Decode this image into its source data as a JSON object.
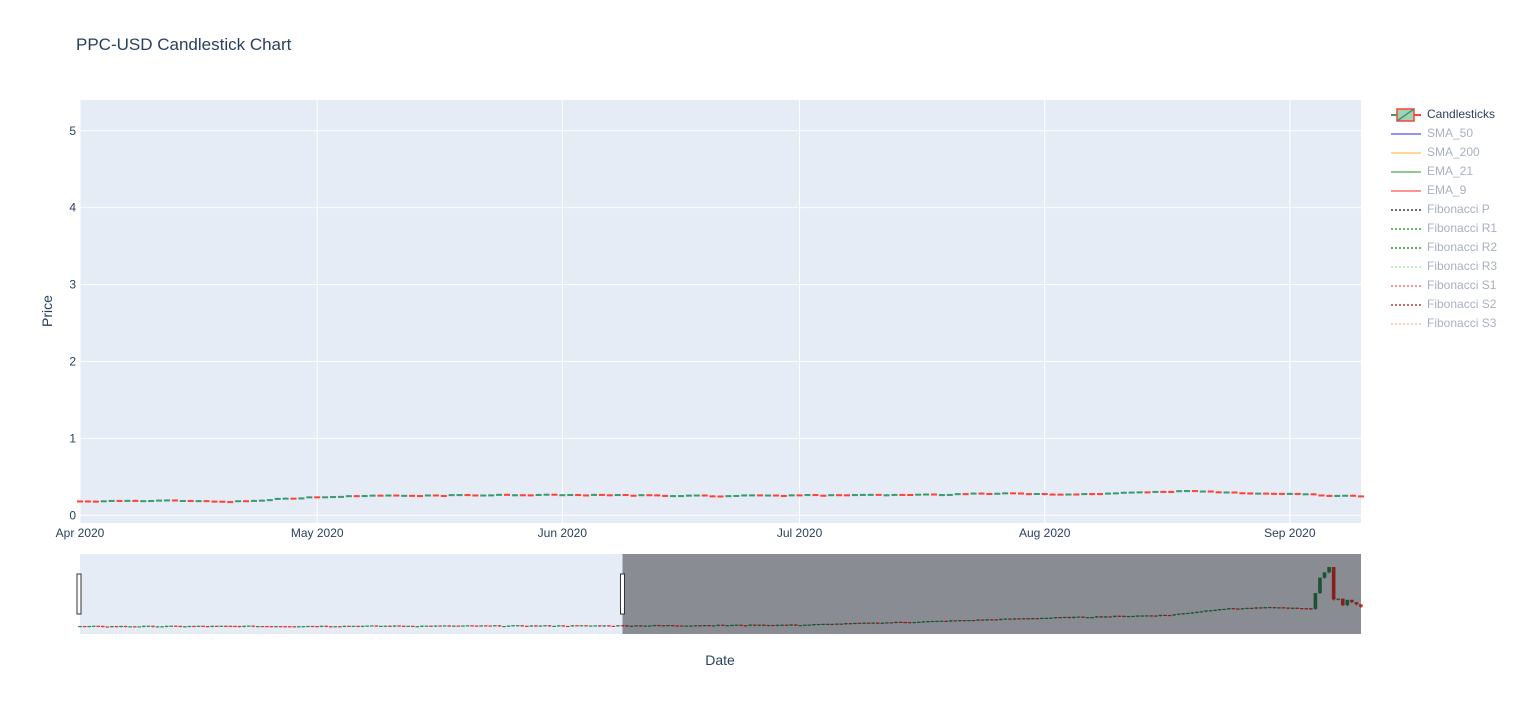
{
  "title": "PPC-USD Candlestick Chart",
  "chart_data": {
    "type": "candlestick",
    "title": "PPC-USD Candlestick Chart",
    "xlabel": "Date",
    "ylabel": "Price",
    "ylim": [
      -0.1,
      5.4
    ],
    "xlim": [
      "2020-04-01",
      "2020-09-10"
    ],
    "yticks": [
      0,
      1,
      2,
      3,
      4,
      5
    ],
    "xticks": [
      {
        "date": "2020-04-01",
        "label": "Apr 2020"
      },
      {
        "date": "2020-05-01",
        "label": "May 2020"
      },
      {
        "date": "2020-06-01",
        "label": "Jun 2020"
      },
      {
        "date": "2020-07-01",
        "label": "Jul 2020"
      },
      {
        "date": "2020-08-01",
        "label": "Aug 2020"
      },
      {
        "date": "2020-09-01",
        "label": "Sep 2020"
      }
    ],
    "grid": true,
    "legend_position": "right",
    "colors": {
      "increasing": "#3d9970",
      "decreasing": "#ff4136",
      "plot_bg": "#e5ecf6"
    },
    "series": [
      {
        "name": "Candlesticks",
        "visible": true
      },
      {
        "name": "SMA_50",
        "visible": false,
        "color": "#7f7fff",
        "dash": "solid"
      },
      {
        "name": "SMA_200",
        "visible": false,
        "color": "#ffd27f",
        "dash": "solid"
      },
      {
        "name": "EMA_21",
        "visible": false,
        "color": "#7fbf7f",
        "dash": "solid"
      },
      {
        "name": "EMA_9",
        "visible": false,
        "color": "#ff7f7f",
        "dash": "solid"
      },
      {
        "name": "Fibonacci P",
        "visible": false,
        "color": "#555555",
        "dash": "dot"
      },
      {
        "name": "Fibonacci R1",
        "visible": false,
        "color": "#55aa55",
        "dash": "dot"
      },
      {
        "name": "Fibonacci R2",
        "visible": false,
        "color": "#4a9a4a",
        "dash": "dot"
      },
      {
        "name": "Fibonacci R3",
        "visible": false,
        "color": "#b4f0b4",
        "dash": "dot"
      },
      {
        "name": "Fibonacci S1",
        "visible": false,
        "color": "#ff8080",
        "dash": "dot"
      },
      {
        "name": "Fibonacci S2",
        "visible": false,
        "color": "#c05050",
        "dash": "dot"
      },
      {
        "name": "Fibonacci S3",
        "visible": false,
        "color": "#ffc8a0",
        "dash": "dot"
      }
    ],
    "close_anchors": [
      {
        "date": "2020-04-01",
        "close": 0.19
      },
      {
        "date": "2020-04-10",
        "close": 0.2
      },
      {
        "date": "2020-04-20",
        "close": 0.18
      },
      {
        "date": "2020-04-30",
        "close": 0.24
      },
      {
        "date": "2020-05-08",
        "close": 0.26
      },
      {
        "date": "2020-05-20",
        "close": 0.27
      },
      {
        "date": "2020-06-01",
        "close": 0.27
      },
      {
        "date": "2020-06-20",
        "close": 0.26
      },
      {
        "date": "2020-07-10",
        "close": 0.27
      },
      {
        "date": "2020-07-28",
        "close": 0.29
      },
      {
        "date": "2020-08-05",
        "close": 0.28
      },
      {
        "date": "2020-08-18",
        "close": 0.32
      },
      {
        "date": "2020-08-30",
        "close": 0.29
      },
      {
        "date": "2020-09-10",
        "close": 0.25
      }
    ],
    "rangeslider": {
      "range": [
        "2019-12-04",
        "2020-09-10"
      ],
      "selected": [
        "2019-12-04",
        "2020-04-01"
      ],
      "max_price": 0.95,
      "close_anchors": [
        {
          "date": "2019-12-04",
          "close": 0.05
        },
        {
          "date": "2020-04-01",
          "close": 0.06
        },
        {
          "date": "2020-05-10",
          "close": 0.07
        },
        {
          "date": "2020-06-10",
          "close": 0.12
        },
        {
          "date": "2020-07-01",
          "close": 0.16
        },
        {
          "date": "2020-07-30",
          "close": 0.2
        },
        {
          "date": "2020-08-10",
          "close": 0.28
        },
        {
          "date": "2020-08-22",
          "close": 0.3
        },
        {
          "date": "2020-08-30",
          "close": 0.28
        },
        {
          "date": "2020-09-02",
          "close": 0.9
        },
        {
          "date": "2020-09-04",
          "close": 0.5
        },
        {
          "date": "2020-09-10",
          "close": 0.3
        }
      ]
    }
  }
}
